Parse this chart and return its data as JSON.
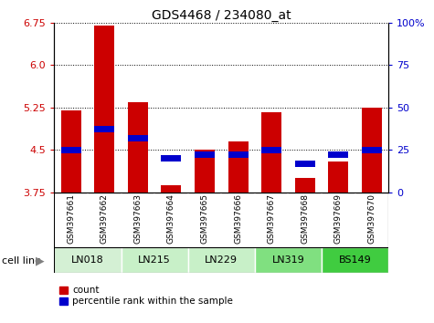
{
  "title": "GDS4468 / 234080_at",
  "samples": [
    "GSM397661",
    "GSM397662",
    "GSM397663",
    "GSM397664",
    "GSM397665",
    "GSM397666",
    "GSM397667",
    "GSM397668",
    "GSM397669",
    "GSM397670"
  ],
  "cell_lines": [
    {
      "name": "LN018",
      "indices": [
        0,
        1
      ],
      "color": "#d4f0d4"
    },
    {
      "name": "LN215",
      "indices": [
        2,
        3
      ],
      "color": "#c8f0c8"
    },
    {
      "name": "LN229",
      "indices": [
        4,
        5
      ],
      "color": "#c8f0c8"
    },
    {
      "name": "LN319",
      "indices": [
        6,
        7
      ],
      "color": "#80e080"
    },
    {
      "name": "BS149",
      "indices": [
        8,
        9
      ],
      "color": "#40cc40"
    }
  ],
  "count_values": [
    5.2,
    6.7,
    5.35,
    3.88,
    4.5,
    4.65,
    5.17,
    4.0,
    4.3,
    5.25
  ],
  "percentile_values": [
    25,
    37,
    32,
    20,
    22,
    22,
    25,
    17,
    22,
    25
  ],
  "left_yticks": [
    3.75,
    4.5,
    5.25,
    6.0,
    6.75
  ],
  "right_yticks": [
    0,
    25,
    50,
    75,
    100
  ],
  "ylim_left": [
    3.75,
    6.75
  ],
  "ylim_right": [
    0,
    100
  ],
  "bar_color": "#cc0000",
  "blue_color": "#0000cc",
  "left_tick_color": "#cc0000",
  "right_tick_color": "#0000cc",
  "sample_bg": "#c8c8c8",
  "sample_divider": "#ffffff"
}
